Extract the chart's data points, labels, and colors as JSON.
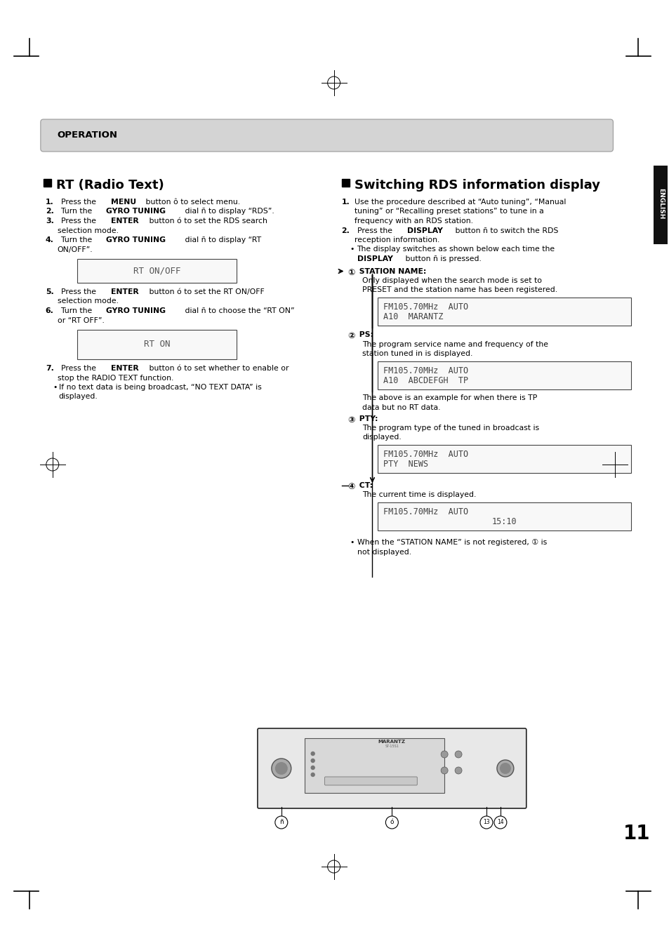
{
  "page_bg": "#ffffff",
  "header_bg": "#d4d4d4",
  "header_text": "OPERATION",
  "left_title": "RT (Radio Text)",
  "right_title": "Switching RDS information display",
  "page_number": "11",
  "display1_text": "RT ON/OFF",
  "display2_text": "RT ON",
  "display_sn_line1": "FM105.70MHz  AUTO",
  "display_sn_line2": "A10  MARANTZ",
  "display_ps_line1": "FM105.70MHz  AUTO",
  "display_ps_line2": "A10  ABCDEFGH  TP",
  "display_pty_line1": "FM105.70MHz  AUTO",
  "display_pty_line2": "PTY  NEWS",
  "display_ct_line1": "FM105.70MHz  AUTO",
  "display_ct_line2": "15:10"
}
